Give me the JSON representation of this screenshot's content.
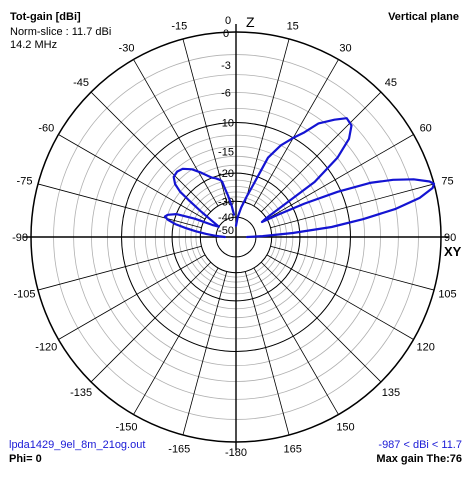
{
  "header": {
    "title": "Tot-gain [dBi]",
    "norm_slice": "Norm-slice : 11.7 dBi",
    "frequency": "14.2 MHz",
    "plane": "Vertical plane"
  },
  "footer": {
    "filename": "lpda1429_9el_8m_21og.out",
    "phi": "Phi= 0",
    "range": "-987 < dBi < 11.7",
    "max_gain": "Max gain The:76"
  },
  "colors": {
    "pattern": "#1414d2",
    "grid": "#000000",
    "minor_grid": "#b0b0b0"
  },
  "chart_data": {
    "type": "line",
    "subtype": "polar",
    "title": "Tot-gain [dBi]",
    "plane": "Vertical plane",
    "axis_markers": {
      "top": "Z",
      "right": "XY"
    },
    "angle_labels": [
      {
        "angle": 0,
        "label": "0"
      },
      {
        "angle": 15,
        "label": "15"
      },
      {
        "angle": 30,
        "label": "30"
      },
      {
        "angle": 45,
        "label": "45"
      },
      {
        "angle": 60,
        "label": "60"
      },
      {
        "angle": 75,
        "label": "75"
      },
      {
        "angle": 90,
        "label": "90"
      },
      {
        "angle": 105,
        "label": "105"
      },
      {
        "angle": 120,
        "label": "120"
      },
      {
        "angle": 135,
        "label": "135"
      },
      {
        "angle": 150,
        "label": "150"
      },
      {
        "angle": 165,
        "label": "165"
      },
      {
        "angle": 180,
        "label": "-180"
      },
      {
        "angle": -165,
        "label": "-165"
      },
      {
        "angle": -150,
        "label": "-150"
      },
      {
        "angle": -135,
        "label": "-135"
      },
      {
        "angle": -120,
        "label": "-120"
      },
      {
        "angle": -105,
        "label": "-105"
      },
      {
        "angle": -90,
        "label": "-90"
      },
      {
        "angle": -75,
        "label": "-75"
      },
      {
        "angle": -60,
        "label": "-60"
      },
      {
        "angle": -45,
        "label": "-45"
      },
      {
        "angle": -30,
        "label": "-30"
      },
      {
        "angle": -15,
        "label": "-15"
      }
    ],
    "radial_labels": [
      "0",
      "-3",
      "-6",
      "-10",
      "-15",
      "-20",
      "-30",
      "-40",
      "-50"
    ],
    "radial_rings_db": [
      0,
      -3,
      -6,
      -10,
      -15,
      -20,
      -30,
      -40,
      -50
    ],
    "radial_scale": "ARRL log-periodic",
    "series": [
      {
        "theta_deg": [
          0,
          5,
          10,
          15,
          18,
          22,
          26,
          30,
          33,
          36,
          40,
          43,
          46,
          49,
          52,
          55,
          58,
          60,
          62,
          64,
          66,
          68,
          70,
          72,
          74,
          75,
          76,
          78,
          80,
          82,
          84,
          86,
          88,
          90
        ],
        "gain_db": [
          -50,
          -40,
          -33,
          -27,
          -23,
          -15,
          -12,
          -10,
          -8.6,
          -6.5,
          -5,
          -4,
          -4.2,
          -5.4,
          -8,
          -13,
          -30,
          -33,
          -25,
          -17,
          -10.5,
          -6,
          -3.5,
          -1.6,
          -0.3,
          0,
          -0.2,
          -1.5,
          -4,
          -8,
          -13,
          -22,
          -35,
          -50
        ]
      },
      {
        "theta_deg": [
          -5,
          -8,
          -11,
          -13,
          -14,
          -15,
          -17,
          -19,
          -22,
          -25,
          -29,
          -33,
          -38,
          -42,
          -46,
          -49,
          -51,
          -52,
          -54,
          -56,
          -59,
          -63,
          -66,
          -69,
          -72,
          -74,
          -76,
          -78,
          -80,
          -82,
          -84,
          -86,
          -88,
          -90
        ],
        "gain_db": [
          -38,
          -32,
          -27,
          -24,
          -22,
          -21.5,
          -21,
          -20.5,
          -20,
          -19,
          -17.5,
          -16,
          -14.8,
          -14.5,
          -14.8,
          -16,
          -18,
          -21,
          -27,
          -33,
          -40,
          -35,
          -26,
          -20,
          -18,
          -17.5,
          -18.5,
          -20.5,
          -24,
          -28,
          -33,
          -38,
          -44,
          -50
        ]
      }
    ]
  }
}
